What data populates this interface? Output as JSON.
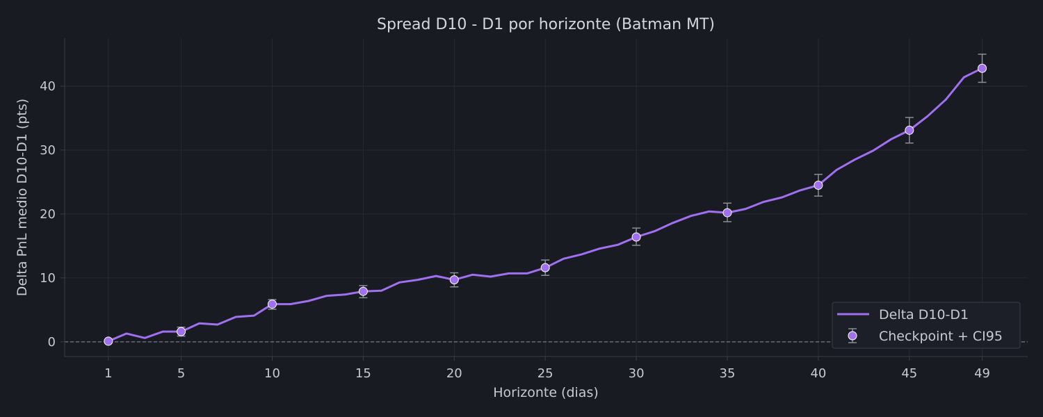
{
  "chart_data": {
    "type": "line",
    "title": "Spread D10 - D1 por horizonte (Batman MT)",
    "xlabel": "Horizonte (dias)",
    "ylabel": "Delta PnL medio D10-D1 (pts)",
    "xlim": [
      -1.4,
      51.5
    ],
    "ylim": [
      -2.3,
      47.5
    ],
    "xticks": [
      1,
      5,
      10,
      15,
      20,
      25,
      30,
      35,
      40,
      45,
      49
    ],
    "yticks": [
      0,
      10,
      20,
      30,
      40
    ],
    "grid": true,
    "reference_line_y": 0,
    "legend": {
      "placement": "bottom-right",
      "entries": [
        "Delta D10-D1",
        "Checkpoint + CI95"
      ]
    },
    "series": [
      {
        "name": "Delta D10-D1",
        "color": "#a070f0",
        "x": [
          1,
          2,
          3,
          4,
          5,
          6,
          7,
          8,
          9,
          10,
          11,
          12,
          13,
          14,
          15,
          16,
          17,
          18,
          19,
          20,
          21,
          22,
          23,
          24,
          25,
          26,
          27,
          28,
          29,
          30,
          31,
          32,
          33,
          34,
          35,
          36,
          37,
          38,
          39,
          40,
          41,
          42,
          43,
          44,
          45,
          46,
          47,
          48,
          49
        ],
        "y": [
          0.1,
          1.3,
          0.6,
          1.6,
          1.6,
          2.9,
          2.7,
          3.9,
          4.1,
          5.9,
          5.9,
          6.4,
          7.2,
          7.4,
          7.9,
          8.0,
          9.3,
          9.7,
          10.3,
          9.7,
          10.5,
          10.2,
          10.7,
          10.7,
          11.6,
          13.0,
          13.7,
          14.6,
          15.2,
          16.4,
          17.3,
          18.6,
          19.7,
          20.4,
          20.2,
          20.8,
          21.9,
          22.6,
          23.7,
          24.5,
          26.9,
          28.5,
          29.9,
          31.7,
          33.1,
          35.3,
          37.9,
          41.4,
          42.8
        ]
      },
      {
        "name": "Checkpoint + CI95",
        "x": [
          1,
          5,
          10,
          15,
          20,
          25,
          30,
          35,
          40,
          45,
          49
        ],
        "y": [
          0.1,
          1.6,
          5.9,
          7.9,
          9.7,
          11.6,
          16.4,
          20.2,
          24.5,
          33.1,
          42.8
        ],
        "ci_low": [
          -0.1,
          0.9,
          5.1,
          6.9,
          8.6,
          10.4,
          15.1,
          18.8,
          22.8,
          31.1,
          40.6
        ],
        "ci_high": [
          0.3,
          2.3,
          6.6,
          8.8,
          10.8,
          12.8,
          17.8,
          21.7,
          26.2,
          35.1,
          45.0
        ]
      }
    ]
  }
}
